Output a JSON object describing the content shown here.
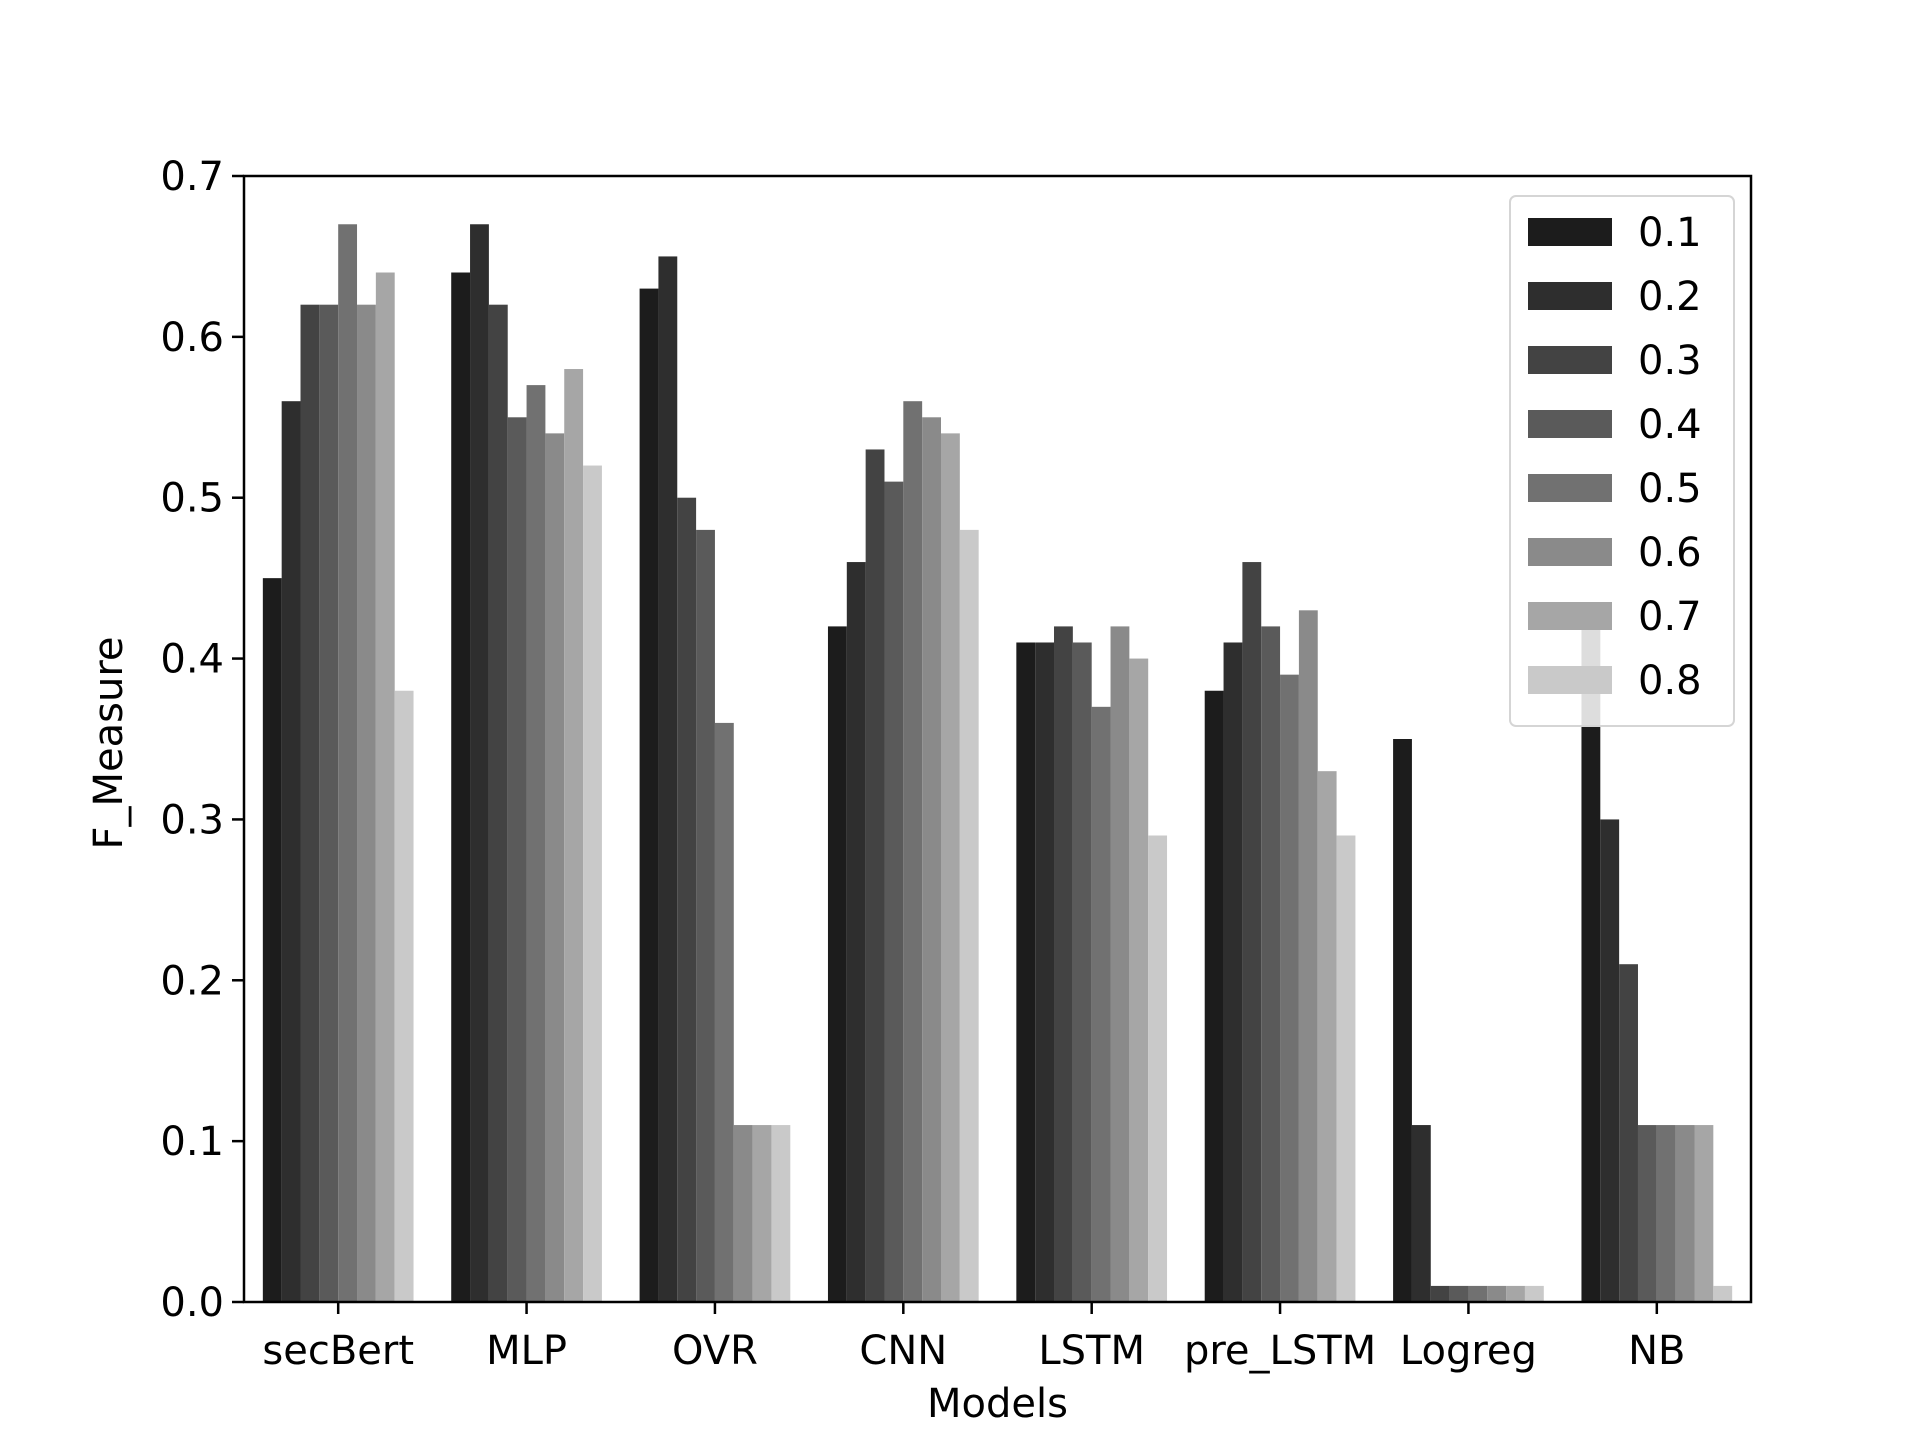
{
  "chart_data": {
    "type": "bar",
    "title": "",
    "xlabel": "Models",
    "ylabel": "F_Measure",
    "ylim": [
      0,
      0.7
    ],
    "yticks": [
      "0.0",
      "0.1",
      "0.2",
      "0.3",
      "0.4",
      "0.5",
      "0.6",
      "0.7"
    ],
    "categories": [
      "secBert",
      "MLP",
      "OVR",
      "CNN",
      "LSTM",
      "pre_LSTM",
      "Logreg",
      "NB"
    ],
    "legend_position": "top-right",
    "grid": false,
    "series": [
      {
        "name": "0.1",
        "color": "#1c1c1c",
        "values": [
          0.45,
          0.64,
          0.63,
          0.42,
          0.41,
          0.38,
          0.35,
          0.43
        ]
      },
      {
        "name": "0.2",
        "color": "#2e2e2e",
        "values": [
          0.56,
          0.67,
          0.65,
          0.46,
          0.41,
          0.41,
          0.11,
          0.3
        ]
      },
      {
        "name": "0.3",
        "color": "#434343",
        "values": [
          0.62,
          0.62,
          0.5,
          0.53,
          0.42,
          0.46,
          0.01,
          0.21
        ]
      },
      {
        "name": "0.4",
        "color": "#5a5a5a",
        "values": [
          0.62,
          0.55,
          0.48,
          0.51,
          0.41,
          0.42,
          0.01,
          0.11
        ]
      },
      {
        "name": "0.5",
        "color": "#717171",
        "values": [
          0.67,
          0.57,
          0.36,
          0.56,
          0.37,
          0.39,
          0.01,
          0.11
        ]
      },
      {
        "name": "0.6",
        "color": "#8a8a8a",
        "values": [
          0.62,
          0.54,
          0.11,
          0.55,
          0.42,
          0.43,
          0.01,
          0.11
        ]
      },
      {
        "name": "0.7",
        "color": "#a6a6a6",
        "values": [
          0.64,
          0.58,
          0.11,
          0.54,
          0.4,
          0.33,
          0.01,
          0.11
        ]
      },
      {
        "name": "0.8",
        "color": "#c9c9c9",
        "values": [
          0.38,
          0.52,
          0.11,
          0.48,
          0.29,
          0.29,
          0.01,
          0.01
        ]
      }
    ]
  }
}
